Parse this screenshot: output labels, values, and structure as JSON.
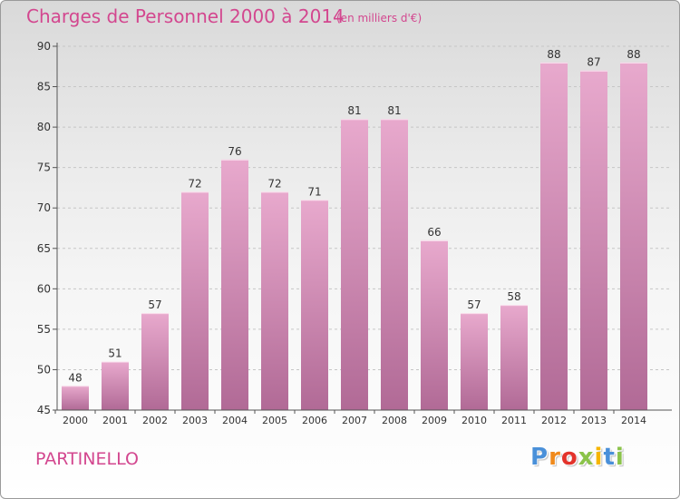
{
  "header": {
    "title": "Charges de Personnel 2000 à 2014",
    "unit": "(en milliers d'€)"
  },
  "footer": {
    "commune": "PARTINELLO",
    "logo_letters": [
      "P",
      "r",
      "o",
      "x",
      "i",
      "t",
      "i"
    ],
    "logo_colors": [
      "#4a90d9",
      "#f08a1c",
      "#e3332b",
      "#8bc34a",
      "#f6b500",
      "#4a90d9",
      "#8bc34a"
    ]
  },
  "colors": {
    "bar_top": "#e8a9cd",
    "bar_bottom": "#b16a96",
    "accent": "#d3478f"
  },
  "chart_data": {
    "type": "bar",
    "title": "Charges de Personnel 2000 à 2014",
    "subtitle": "(en milliers d'€)",
    "categories": [
      "2000",
      "2001",
      "2002",
      "2003",
      "2004",
      "2005",
      "2006",
      "2007",
      "2008",
      "2009",
      "2010",
      "2011",
      "2012",
      "2013",
      "2014"
    ],
    "values": [
      48,
      51,
      57,
      72,
      76,
      72,
      71,
      81,
      81,
      66,
      57,
      58,
      88,
      87,
      88
    ],
    "ylim": [
      45,
      90
    ],
    "yticks": [
      45,
      50,
      55,
      60,
      65,
      70,
      75,
      80,
      85,
      90
    ],
    "grid": true,
    "legend": "none"
  }
}
